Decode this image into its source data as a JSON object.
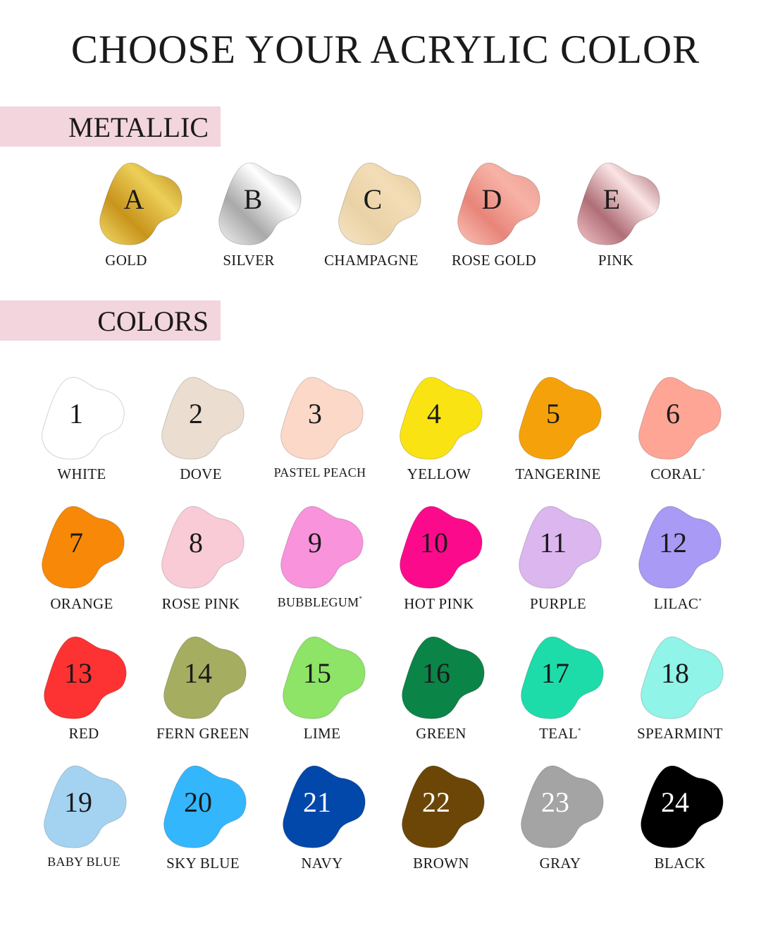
{
  "title": "CHOOSE YOUR ACRYLIC COLOR",
  "sections": {
    "metallic": "METALLIC",
    "colors": "COLORS"
  },
  "metallic": [
    {
      "code": "A",
      "name": "GOLD",
      "stops": [
        "#f3dd6a",
        "#c8941c",
        "#eccf58",
        "#b7861a"
      ]
    },
    {
      "code": "B",
      "name": "SILVER",
      "stops": [
        "#f2f2f2",
        "#a9a9a9",
        "#ffffff",
        "#9a9a9a"
      ]
    },
    {
      "code": "C",
      "name": "CHAMPAGNE",
      "stops": [
        "#f6e4c4",
        "#ead2a6",
        "#f3ddb7",
        "#e3c592"
      ]
    },
    {
      "code": "D",
      "name": "ROSE GOLD",
      "stops": [
        "#fbc4b8",
        "#e8857a",
        "#f7b3a6",
        "#e79a8e"
      ]
    },
    {
      "code": "E",
      "name": "PINK",
      "stops": [
        "#f6c5c8",
        "#b06f78",
        "#fbe4e4",
        "#9d5e66"
      ]
    }
  ],
  "colors": [
    {
      "num": "1",
      "name": "WHITE",
      "color": "#ffffff",
      "text": "#1a1a1a"
    },
    {
      "num": "2",
      "name": "DOVE",
      "color": "#ebddd0",
      "text": "#1a1a1a"
    },
    {
      "num": "3",
      "name": "PASTEL PEACH",
      "color": "#fcd8c8",
      "text": "#1a1a1a"
    },
    {
      "num": "4",
      "name": "YELLOW",
      "color": "#fae312",
      "text": "#1a1a1a"
    },
    {
      "num": "5",
      "name": "TANGERINE",
      "color": "#f5a20a",
      "text": "#1a1a1a"
    },
    {
      "num": "6",
      "name": "CORAL",
      "mark": "*",
      "color": "#fea595",
      "text": "#1a1a1a"
    },
    {
      "num": "7",
      "name": "ORANGE",
      "color": "#f88807",
      "text": "#1a1a1a"
    },
    {
      "num": "8",
      "name": "ROSE PINK",
      "color": "#f9cbd7",
      "text": "#1a1a1a"
    },
    {
      "num": "9",
      "name": "BUBBLEGUM",
      "mark": "*",
      "color": "#f893dc",
      "text": "#1a1a1a"
    },
    {
      "num": "10",
      "name": "HOT PINK",
      "color": "#fc0a8c",
      "text": "#1a1a1a"
    },
    {
      "num": "11",
      "name": "PURPLE",
      "color": "#dcb6ef",
      "text": "#1a1a1a"
    },
    {
      "num": "12",
      "name": "LILAC",
      "mark": "*",
      "color": "#a99af5",
      "text": "#1a1a1a"
    },
    {
      "num": "13",
      "name": "RED",
      "color": "#fd3232",
      "text": "#1a1a1a"
    },
    {
      "num": "14",
      "name": "FERN GREEN",
      "color": "#a5ad60",
      "text": "#1a1a1a"
    },
    {
      "num": "15",
      "name": "LIME",
      "color": "#8de466",
      "text": "#1a1a1a"
    },
    {
      "num": "16",
      "name": "GREEN",
      "color": "#0b8447",
      "text": "#1a1a1a"
    },
    {
      "num": "17",
      "name": "TEAL",
      "mark": "*",
      "color": "#1edcaa",
      "text": "#1a1a1a"
    },
    {
      "num": "18",
      "name": "SPEARMINT",
      "color": "#90f4e8",
      "text": "#1a1a1a"
    },
    {
      "num": "19",
      "name": "BABY BLUE",
      "color": "#a4d3f1",
      "text": "#1a1a1a"
    },
    {
      "num": "20",
      "name": "SKY BLUE",
      "color": "#34b6fc",
      "text": "#1a1a1a"
    },
    {
      "num": "21",
      "name": "NAVY",
      "color": "#0148aa",
      "text": "#ffffff"
    },
    {
      "num": "22",
      "name": "BROWN",
      "color": "#6b4606",
      "text": "#ffffff"
    },
    {
      "num": "23",
      "name": "GRAY",
      "color": "#a4a4a4",
      "text": "#ffffff"
    },
    {
      "num": "24",
      "name": "BLACK",
      "color": "#000000",
      "text": "#ffffff"
    }
  ]
}
